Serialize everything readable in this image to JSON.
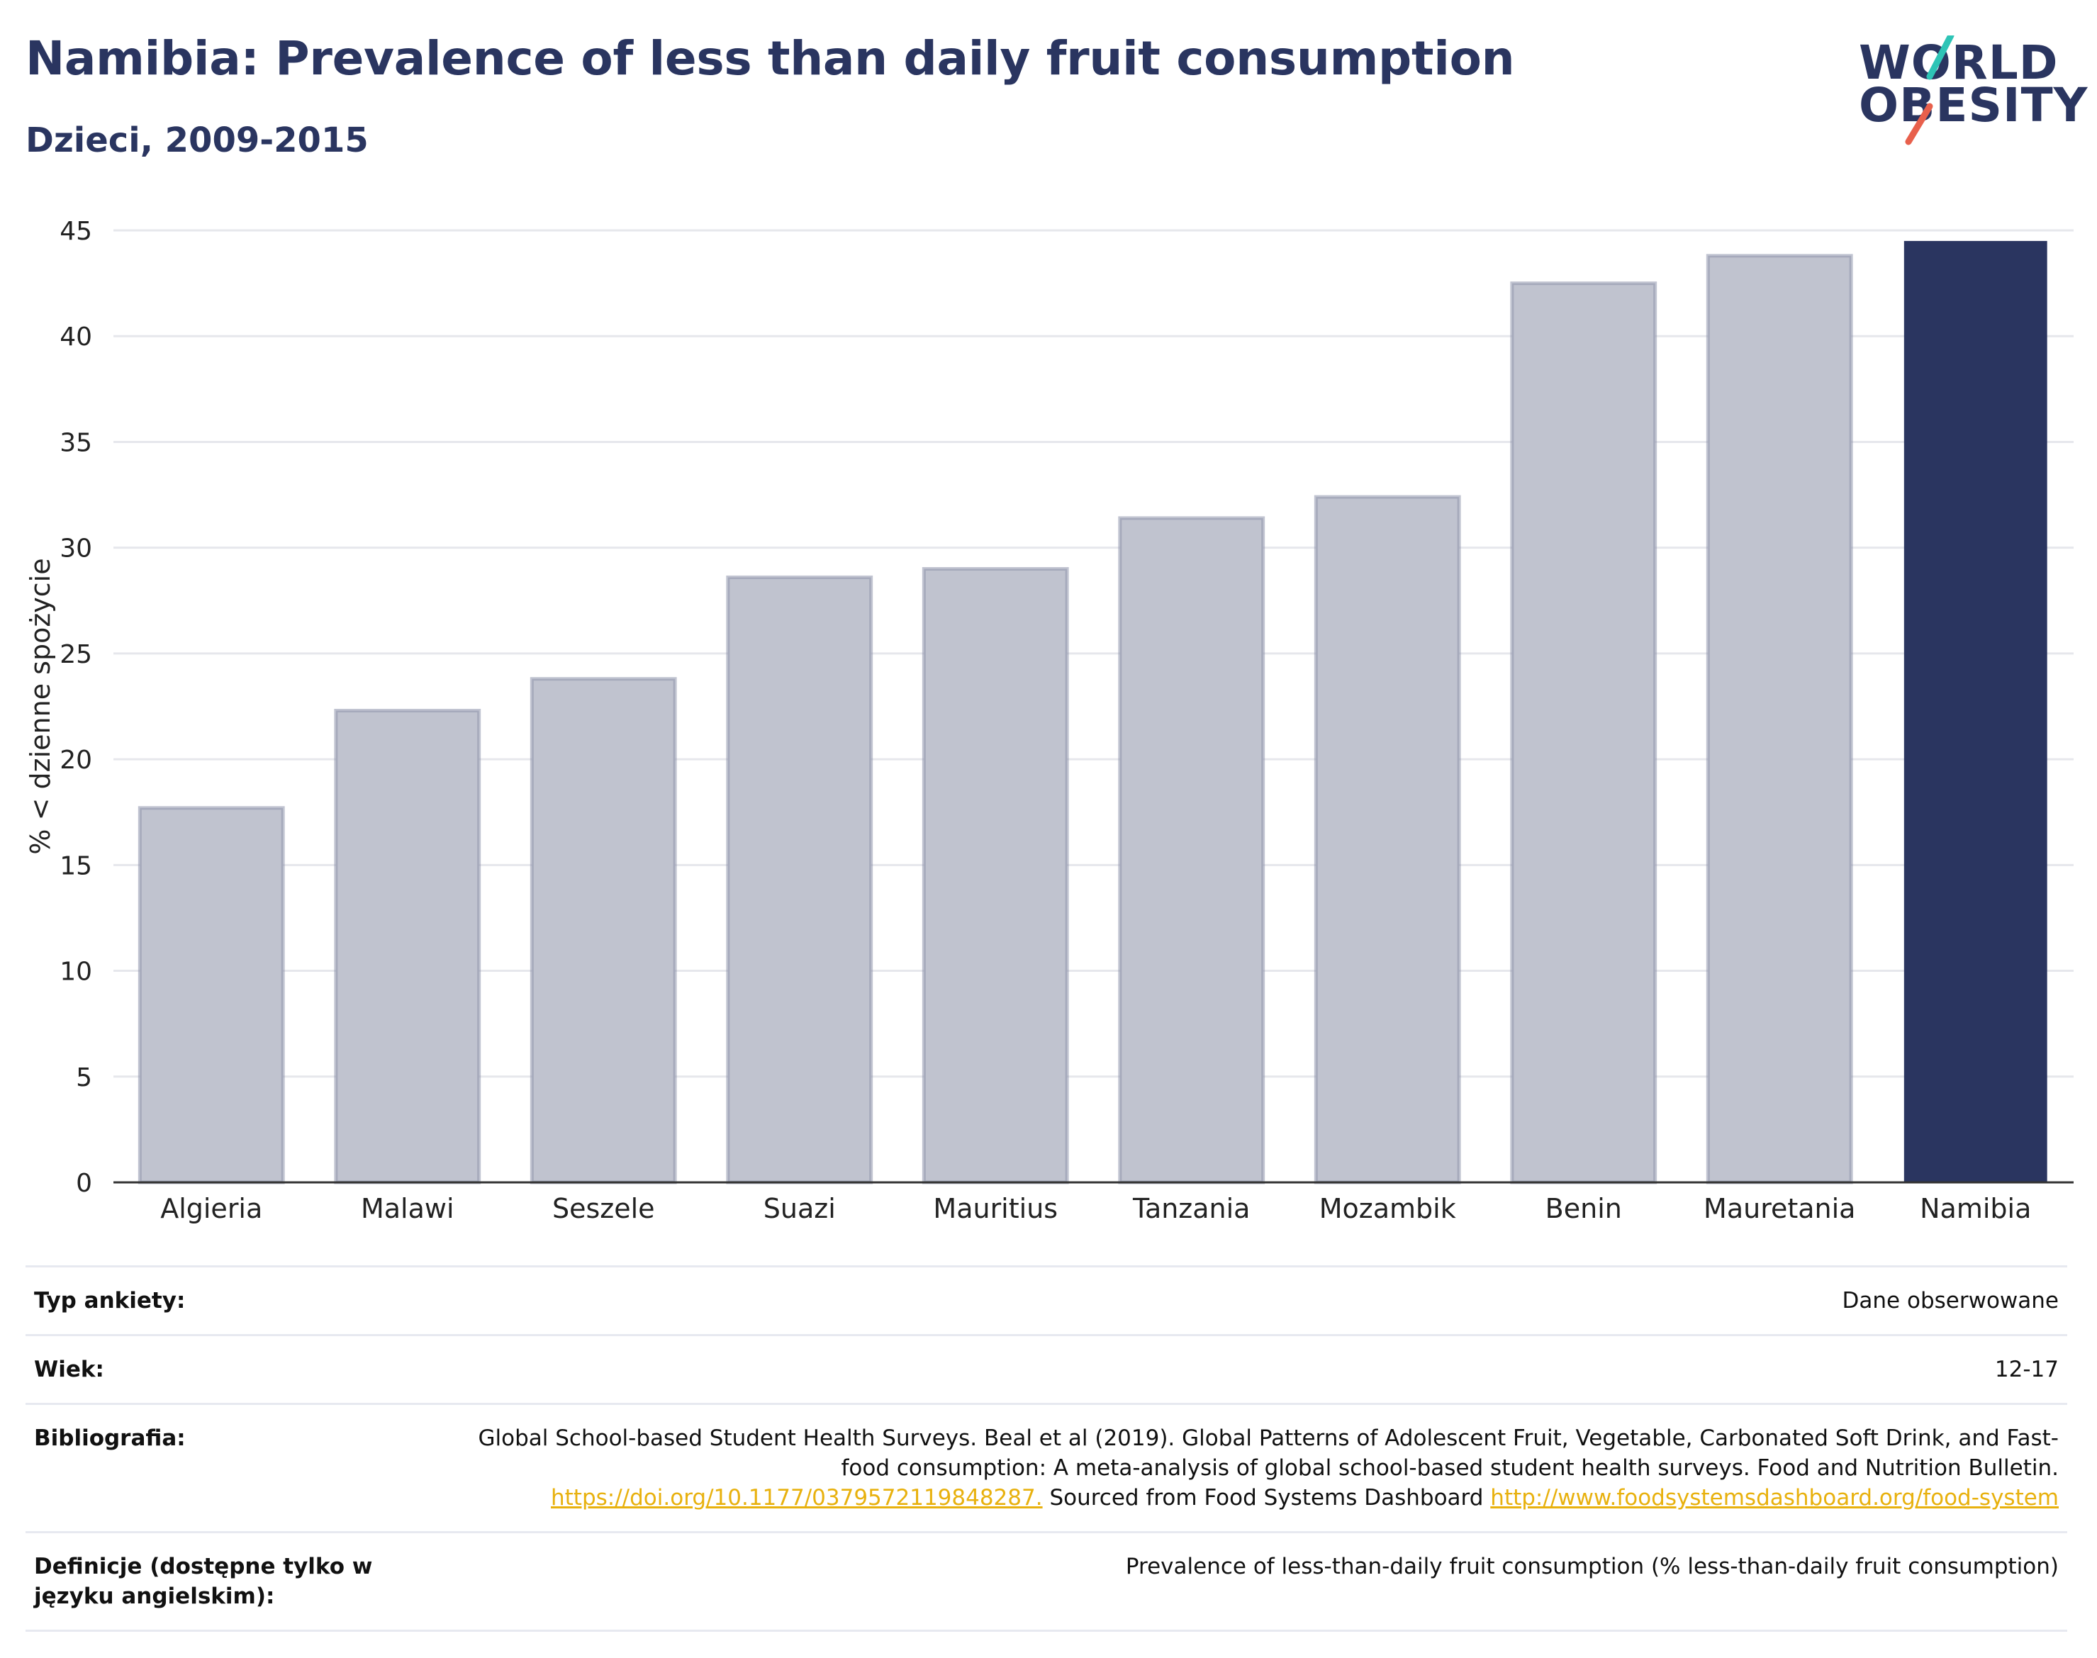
{
  "header": {
    "title": "Namibia: Prevalence of less than daily fruit consumption",
    "subtitle": "Dzieci, 2009-2015"
  },
  "logo": {
    "line1": "WORLD",
    "line2": "OBESITY",
    "accent1": "#2ec4b6",
    "accent2": "#e8604c"
  },
  "chart_data": {
    "type": "bar",
    "categories": [
      "Algieria",
      "Malawi",
      "Seszele",
      "Suazi",
      "Mauritius",
      "Tanzania",
      "Mozambik",
      "Benin",
      "Mauretania",
      "Namibia"
    ],
    "values": [
      17.7,
      22.3,
      23.8,
      28.6,
      29.0,
      31.4,
      32.4,
      42.5,
      43.8,
      44.5
    ],
    "highlight": "Namibia",
    "ylabel": "% < dzienne spożycie",
    "ylim": [
      0,
      45
    ],
    "yticks": [
      0,
      5,
      10,
      15,
      20,
      25,
      30,
      35,
      40,
      45
    ],
    "grid": true,
    "colors": {
      "bar": "#c0c3cf",
      "bar_border": "#8e93ac",
      "highlight": "#2a3560"
    }
  },
  "meta": {
    "survey_label": "Typ ankiety:",
    "survey_value": "Dane obserwowane",
    "age_label": "Wiek:",
    "age_value": "12-17",
    "biblio_label": "Bibliografia:",
    "biblio_text1": "Global School-based Student Health Surveys. Beal et al (2019). Global Patterns of Adolescent Fruit, Vegetable, Carbonated Soft Drink, and Fast-food consumption: A meta-analysis of global school-based student health surveys. Food and Nutrition Bulletin.",
    "biblio_link1": "https://doi.org/10.1177/0379572119848287.",
    "biblio_text2": "Sourced from Food Systems Dashboard",
    "biblio_link2": "http://www.foodsystemsdashboard.org/food-system",
    "def_label": "Definicje (dostępne tylko w języku angielskim):",
    "def_value": "Prevalence of less-than-daily fruit consumption (% less-than-daily fruit consumption)"
  }
}
